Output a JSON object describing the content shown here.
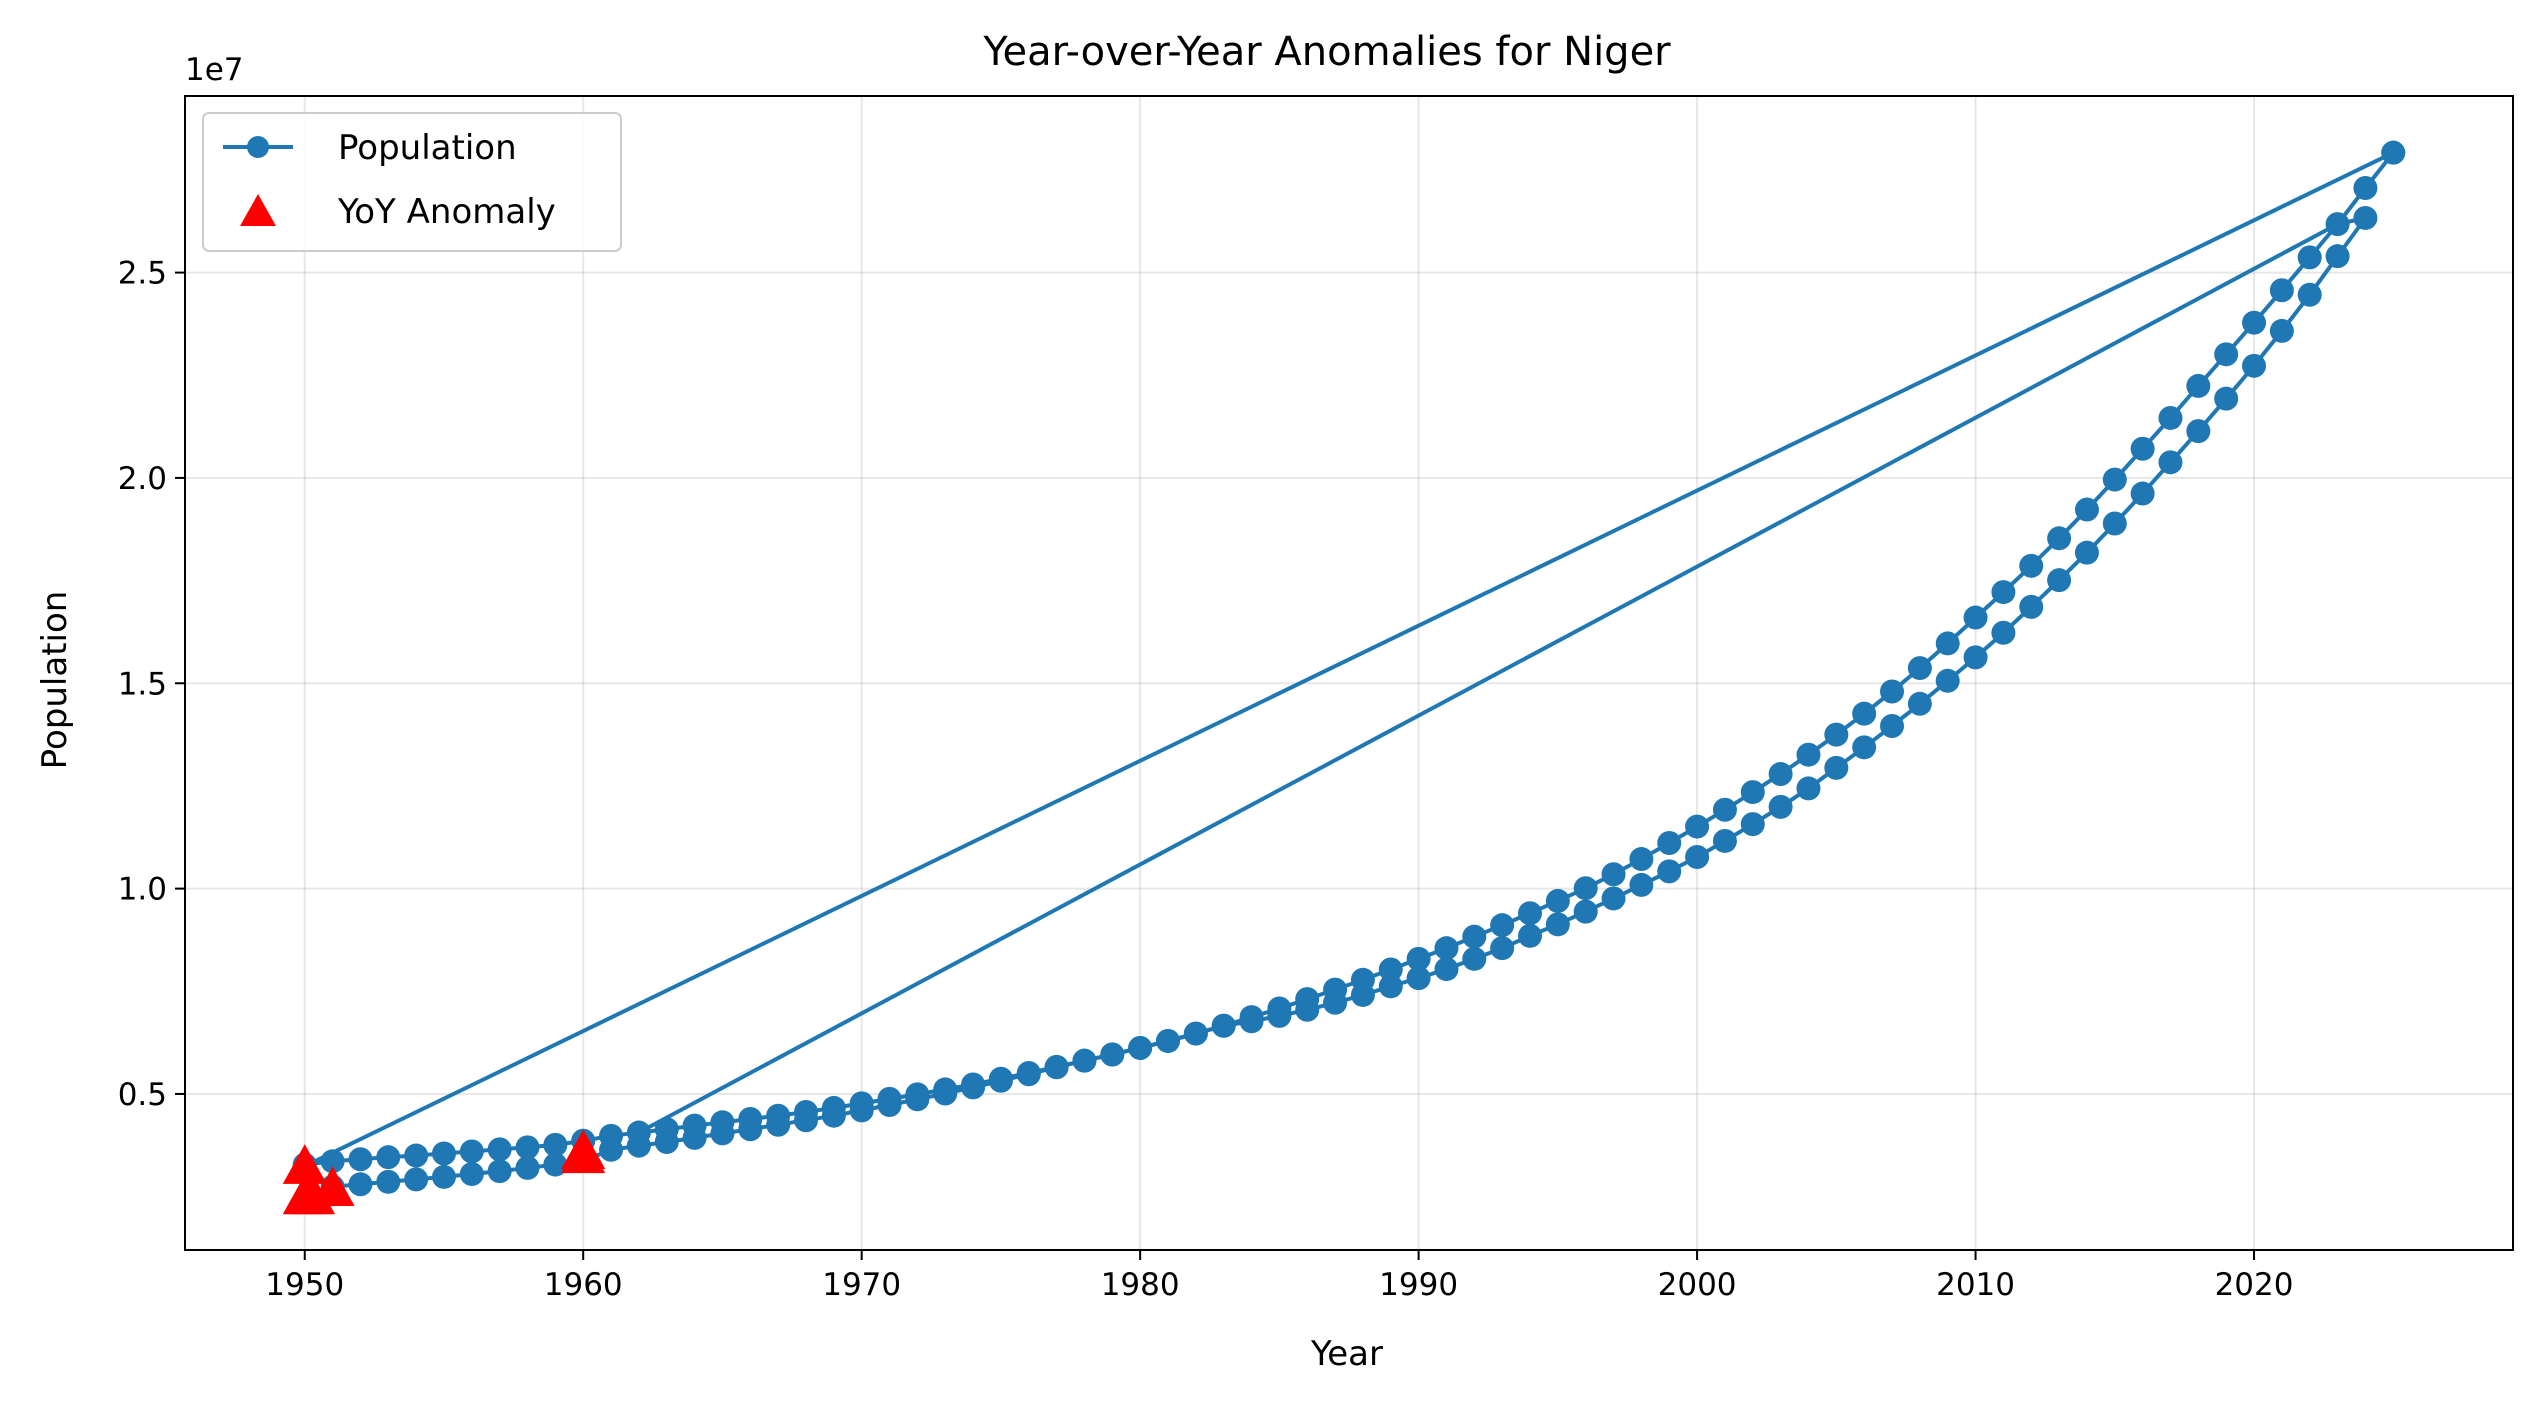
{
  "chart_data": {
    "type": "line",
    "title": "Year-over-Year Anomalies for Niger",
    "xlabel": "Year",
    "ylabel": "Population",
    "y_offset_text": "1e7",
    "xlim": [
      1945.7,
      2029.3
    ],
    "ylim": [
      1200000.0,
      29300000.0
    ],
    "x_ticks": [
      1950,
      1960,
      1970,
      1980,
      1990,
      2000,
      2010,
      2020
    ],
    "y_ticks": [
      5000000,
      10000000,
      15000000,
      20000000,
      25000000
    ],
    "y_tick_labels": [
      "0.5",
      "1.0",
      "1.5",
      "2.0",
      "2.5"
    ],
    "grid": true,
    "legend_position": "top-left",
    "colors": {
      "population": "#1f77b4",
      "anomaly": "#ff0000"
    },
    "series": [
      {
        "name": "Population",
        "marker": "circle",
        "segments": [
          {
            "x": [
              1950,
              1951,
              1952,
              1953,
              1954,
              1955,
              1956,
              1957,
              1958,
              1959,
              1960,
              1961,
              1962,
              1963,
              1964,
              1965,
              1966,
              1967,
              1968,
              1969,
              1970,
              1971,
              1972,
              1973,
              1974,
              1975,
              1976,
              1977,
              1978,
              1979,
              1980,
              1981,
              1982,
              1983,
              1984,
              1985,
              1986,
              1987,
              1988,
              1989,
              1990,
              1991,
              1992,
              1993,
              1994,
              1995,
              1996,
              1997,
              1998,
              1999,
              2000,
              2001,
              2002,
              2003,
              2004,
              2005,
              2006,
              2007,
              2008,
              2009,
              2010,
              2011,
              2012,
              2013,
              2014,
              2015,
              2016,
              2017,
              2018,
              2019,
              2020,
              2021,
              2022,
              2023,
              2024,
              2025
            ],
            "y": [
              3280000,
              3360000,
              3410000,
              3460000,
              3500000,
              3550000,
              3600000,
              3650000,
              3700000,
              3760000,
              3860000,
              3980000,
              4060000,
              4140000,
              4230000,
              4310000,
              4390000,
              4470000,
              4560000,
              4660000,
              4770000,
              4880000,
              4990000,
              5110000,
              5230000,
              5370000,
              5510000,
              5660000,
              5810000,
              5960000,
              6120000,
              6290000,
              6470000,
              6660000,
              6870000,
              7080000,
              7310000,
              7540000,
              7780000,
              8030000,
              8290000,
              8550000,
              8830000,
              9110000,
              9400000,
              9700000,
              10010000,
              10350000,
              10720000,
              11110000,
              11510000,
              11920000,
              12350000,
              12790000,
              13260000,
              13750000,
              14260000,
              14800000,
              15370000,
              15970000,
              16600000,
              17220000,
              17860000,
              18530000,
              19230000,
              19960000,
              20710000,
              21460000,
              22240000,
              23010000,
              23780000,
              24570000,
              25370000,
              26180000,
              27060000,
              27920000
            ]
          },
          {
            "x": [
              2025,
              1950,
              1951,
              1952,
              1953,
              1954,
              1955,
              1956,
              1957,
              1958,
              1959,
              1960,
              1961,
              1962,
              1963,
              1964,
              1965,
              1966,
              1967,
              1968,
              1969,
              1970,
              1971,
              1972,
              1973,
              1974,
              1975,
              1976,
              1977,
              1978,
              1979,
              1980,
              1981,
              1982,
              1983,
              1984,
              1985,
              1986,
              1987,
              1988,
              1989,
              1990,
              1991,
              1992,
              1993,
              1994,
              1995,
              1996,
              1997,
              1998,
              1999,
              2000,
              2001,
              2002,
              2003,
              2004,
              2005,
              2006,
              2007,
              2008,
              2009,
              2010,
              2011,
              2012,
              2013,
              2014,
              2015,
              2016,
              2017,
              2018,
              2019,
              2020,
              2021,
              2022,
              2023,
              2024
            ],
            "y": [
              27920000,
              3240000,
              2740000,
              2800000,
              2860000,
              2920000,
              2980000,
              3050000,
              3120000,
              3200000,
              3280000,
              3370000,
              3640000,
              3740000,
              3830000,
              3930000,
              4040000,
              4140000,
              4250000,
              4360000,
              4470000,
              4600000,
              4730000,
              4870000,
              5010000,
              5160000,
              5320000,
              5480000,
              5650000,
              5810000,
              5960000,
              6120000,
              6290000,
              6470000,
              6660000,
              6770000,
              6900000,
              7050000,
              7220000,
              7410000,
              7620000,
              7820000,
              8040000,
              8290000,
              8550000,
              8850000,
              9130000,
              9440000,
              9760000,
              10090000,
              10420000,
              10770000,
              11160000,
              11570000,
              11990000,
              12440000,
              12940000,
              13440000,
              13960000,
              14500000,
              15060000,
              15630000,
              16230000,
              16860000,
              17510000,
              18180000,
              18890000,
              19620000,
              20380000,
              21140000,
              21930000,
              22730000,
              23580000,
              24460000,
              25400000,
              26330000
            ]
          },
          {
            "x": [
              2024,
              2023,
              1962
            ],
            "y": [
              26330000,
              26180000,
              4060000
            ]
          }
        ]
      },
      {
        "name": "YoY Anomaly",
        "marker": "triangle",
        "x": [
          1950,
          1950,
          1950.3,
          1951,
          1960,
          1960
        ],
        "y": [
          3240000,
          2500000,
          2500000,
          2700000,
          3500000,
          3600000
        ]
      }
    ]
  }
}
